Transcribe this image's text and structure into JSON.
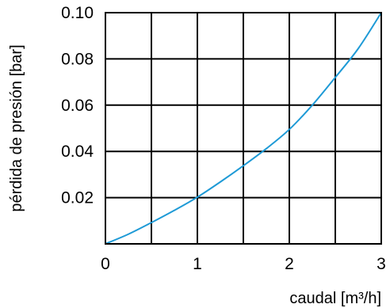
{
  "chart_data": {
    "type": "line",
    "title": "",
    "xlabel": "caudal [m³/h]",
    "ylabel": "pérdida de presión [bar]",
    "xlim": [
      0,
      3
    ],
    "ylim": [
      0,
      0.1
    ],
    "grid": true,
    "x_ticks": [
      0,
      0.5,
      1,
      1.5,
      2,
      2.5,
      3
    ],
    "y_ticks": [
      0,
      0.02,
      0.04,
      0.06,
      0.08,
      0.1
    ],
    "x_tick_labels": [
      "0",
      "",
      "1",
      "",
      "2",
      "",
      "3"
    ],
    "y_tick_labels": [
      "",
      "0.02",
      "0.04",
      "0.06",
      "0.08",
      "0.10"
    ],
    "series": [
      {
        "color": "#1e9ad6",
        "x": [
          0,
          0.25,
          0.5,
          0.75,
          1.0,
          1.25,
          1.5,
          1.75,
          2.0,
          2.25,
          2.5,
          2.75,
          3.0
        ],
        "y": [
          0,
          0.0042,
          0.0092,
          0.0145,
          0.0202,
          0.0268,
          0.0338,
          0.0412,
          0.0495,
          0.06,
          0.072,
          0.0845,
          0.1
        ]
      }
    ]
  }
}
